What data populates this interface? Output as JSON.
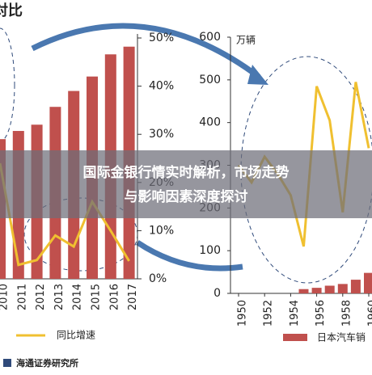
{
  "headline": {
    "line1": "国际金银行情实时解析，市场走势",
    "line2": "与影响因素深度探讨"
  },
  "source": "海通证券研究所",
  "chart_data": [
    {
      "type": "bar",
      "title": "对比",
      "categories": [
        "2010",
        "2011",
        "2012",
        "2013",
        "2014",
        "2015",
        "2016",
        "2017"
      ],
      "series": [
        {
          "type": "bar",
          "color": "#c0504d",
          "values": [
            29,
            30.7,
            32,
            35.7,
            39,
            42,
            46.6,
            48.2
          ]
        },
        {
          "type": "line",
          "name": "同比增速",
          "color": "#f0c030",
          "values": [
            24,
            2.9,
            3.9,
            9,
            6.7,
            16,
            10,
            3.7
          ]
        }
      ],
      "ylim": [
        0,
        50
      ],
      "yticks": [
        {
          "value": 0,
          "label": "0%"
        },
        {
          "value": 10,
          "label": "10%"
        },
        {
          "value": 20,
          "label": "20%"
        },
        {
          "value": 30,
          "label": "30%"
        },
        {
          "value": 40,
          "label": "40%"
        },
        {
          "value": 50,
          "label": "50%"
        }
      ]
    },
    {
      "type": "line",
      "unit": "万辆",
      "x": [
        1950,
        1951,
        1952,
        1953,
        1954,
        1955,
        1956,
        1957,
        1958,
        1959,
        1960
      ],
      "series": [
        {
          "type": "line",
          "color": "#f0c030",
          "values": [
            300,
            260,
            320,
            280,
            230,
            110,
            485,
            405,
            190,
            495,
            340
          ]
        },
        {
          "type": "bar",
          "name": "日本汽车销",
          "color": "#c0504d",
          "values": [
            null,
            null,
            null,
            null,
            null,
            10,
            13,
            18,
            22,
            32,
            48
          ]
        }
      ],
      "xlim": [
        1950,
        1960
      ],
      "xticks": [
        1950,
        1952,
        1954,
        1956,
        1958,
        1960
      ],
      "ylim": [
        0,
        600
      ],
      "yticks": [
        0,
        100,
        200,
        300,
        400,
        500,
        600
      ]
    }
  ]
}
